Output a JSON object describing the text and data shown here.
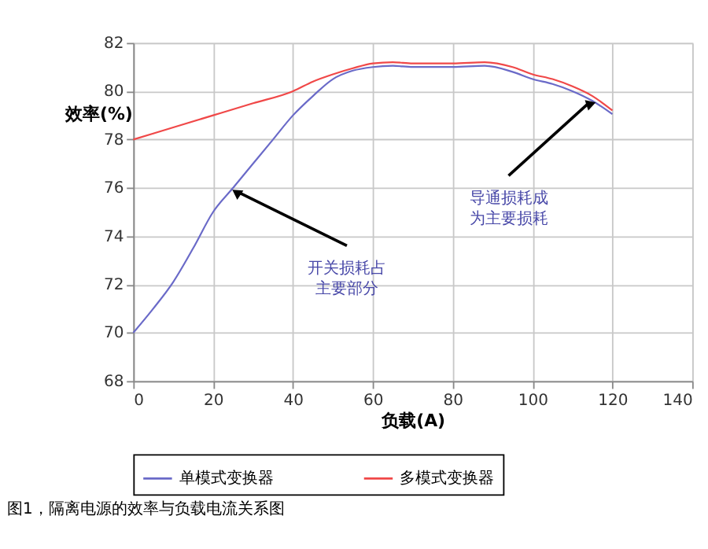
{
  "chart_data": {
    "type": "line",
    "xlabel": "负载(A)",
    "ylabel": "效率(%)",
    "xlim": [
      0,
      140
    ],
    "xticks": [
      0,
      20,
      40,
      60,
      80,
      100,
      120,
      140
    ],
    "ylim": [
      68,
      82
    ],
    "yticks": [
      68,
      70,
      72,
      74,
      76,
      78,
      80,
      82
    ],
    "grid": true,
    "legend": "bottom",
    "marker": "none",
    "line_style": "solid",
    "series": [
      {
        "name": "单模式变换器",
        "color": "#6a6ac8",
        "x": [
          0,
          5,
          10,
          15,
          20,
          25,
          30,
          35,
          40,
          45,
          50,
          55,
          60,
          65,
          70,
          80,
          88,
          95,
          100,
          105,
          110,
          115,
          120
        ],
        "values": [
          70,
          71,
          72.1,
          73.5,
          75,
          76,
          77,
          78,
          79,
          79.8,
          80.5,
          80.85,
          81,
          81.05,
          81,
          81,
          81.05,
          80.8,
          80.5,
          80.3,
          80,
          79.6,
          79.05
        ]
      },
      {
        "name": "多模式变换器",
        "color": "#f04848",
        "x": [
          0,
          10,
          20,
          30,
          40,
          45,
          50,
          55,
          60,
          65,
          70,
          80,
          88,
          95,
          100,
          105,
          110,
          115,
          120
        ],
        "values": [
          78,
          78.5,
          79,
          79.5,
          80,
          80.4,
          80.7,
          80.95,
          81.15,
          81.2,
          81.15,
          81.15,
          81.2,
          81,
          80.7,
          80.5,
          80.2,
          79.8,
          79.2
        ]
      }
    ],
    "annotations": [
      {
        "text": "开关损耗占主要部分",
        "x": 26.5,
        "y": 75.8
      },
      {
        "text": "导通损耗成为主要损耗",
        "x": 114,
        "y": 79.5
      },
      "图1，隔离电源的效率与负载电流关系图"
    ]
  }
}
